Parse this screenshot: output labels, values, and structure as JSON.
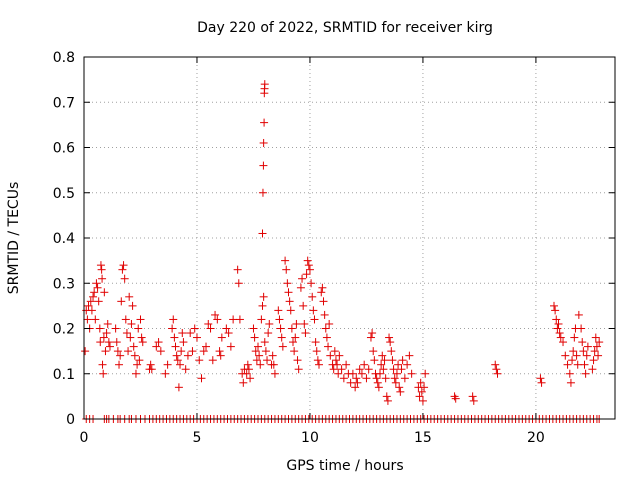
{
  "chart_data": {
    "type": "scatter",
    "title": "Day 220 of 2022, SRMTID for receiver kirg",
    "xlabel": "GPS time / hours",
    "ylabel": "SRMTID / TECUs",
    "xlim": [
      0,
      23.5
    ],
    "ylim": [
      0,
      0.8
    ],
    "xticks": [
      0,
      5,
      10,
      15,
      20
    ],
    "yticks": [
      0,
      0.1,
      0.2,
      0.3,
      0.4,
      0.5,
      0.6,
      0.7,
      0.8
    ],
    "xtick_labels": [
      "0",
      "5",
      "10",
      "15",
      "20"
    ],
    "ytick_labels": [
      "0",
      "0.1",
      "0.2",
      "0.3",
      "0.4",
      "0.5",
      "0.6",
      "0.7",
      "0.8"
    ],
    "marker": "+",
    "color": "#e00000",
    "grid": true,
    "series": [
      {
        "name": "SRMTID",
        "points": [
          [
            0.05,
            0.15
          ],
          [
            0.1,
            0.24
          ],
          [
            0.15,
            0.22
          ],
          [
            0.2,
            0.25
          ],
          [
            0.25,
            0.2
          ],
          [
            0.3,
            0.26
          ],
          [
            0.35,
            0.24
          ],
          [
            0.4,
            0.27
          ],
          [
            0.45,
            0.28
          ],
          [
            0.5,
            0.22
          ],
          [
            0.55,
            0.3
          ],
          [
            0.6,
            0.29
          ],
          [
            0.65,
            0.26
          ],
          [
            0.7,
            0.2
          ],
          [
            0.72,
            0.17
          ],
          [
            0.75,
            0.34
          ],
          [
            0.78,
            0.33
          ],
          [
            0.8,
            0.31
          ],
          [
            0.82,
            0.12
          ],
          [
            0.85,
            0.1
          ],
          [
            0.88,
            0.18
          ],
          [
            0.9,
            0.28
          ],
          [
            0.95,
            0.15
          ],
          [
            1.0,
            0.19
          ],
          [
            1.05,
            0.21
          ],
          [
            1.1,
            0.17
          ],
          [
            1.15,
            0.16
          ],
          [
            1.4,
            0.2
          ],
          [
            1.45,
            0.17
          ],
          [
            1.5,
            0.15
          ],
          [
            1.55,
            0.12
          ],
          [
            1.6,
            0.14
          ],
          [
            1.65,
            0.26
          ],
          [
            1.7,
            0.33
          ],
          [
            1.75,
            0.34
          ],
          [
            1.8,
            0.31
          ],
          [
            1.85,
            0.22
          ],
          [
            1.9,
            0.19
          ],
          [
            1.95,
            0.15
          ],
          [
            2.0,
            0.27
          ],
          [
            2.05,
            0.18
          ],
          [
            2.1,
            0.21
          ],
          [
            2.15,
            0.25
          ],
          [
            2.2,
            0.16
          ],
          [
            2.25,
            0.14
          ],
          [
            2.3,
            0.1
          ],
          [
            2.35,
            0.12
          ],
          [
            2.4,
            0.2
          ],
          [
            2.45,
            0.13
          ],
          [
            2.5,
            0.22
          ],
          [
            2.55,
            0.18
          ],
          [
            2.6,
            0.17
          ],
          [
            2.9,
            0.11
          ],
          [
            2.95,
            0.12
          ],
          [
            3.0,
            0.11
          ],
          [
            3.2,
            0.16
          ],
          [
            3.3,
            0.17
          ],
          [
            3.4,
            0.15
          ],
          [
            3.6,
            0.1
          ],
          [
            3.7,
            0.12
          ],
          [
            3.9,
            0.2
          ],
          [
            3.95,
            0.22
          ],
          [
            4.0,
            0.18
          ],
          [
            4.05,
            0.16
          ],
          [
            4.1,
            0.14
          ],
          [
            4.15,
            0.13
          ],
          [
            4.2,
            0.07
          ],
          [
            4.25,
            0.12
          ],
          [
            4.3,
            0.15
          ],
          [
            4.35,
            0.19
          ],
          [
            4.4,
            0.17
          ],
          [
            4.5,
            0.11
          ],
          [
            4.6,
            0.14
          ],
          [
            4.7,
            0.19
          ],
          [
            4.8,
            0.15
          ],
          [
            4.9,
            0.2
          ],
          [
            5.0,
            0.18
          ],
          [
            5.1,
            0.13
          ],
          [
            5.2,
            0.09
          ],
          [
            5.3,
            0.15
          ],
          [
            5.4,
            0.16
          ],
          [
            5.5,
            0.21
          ],
          [
            5.6,
            0.2
          ],
          [
            5.7,
            0.13
          ],
          [
            5.8,
            0.23
          ],
          [
            5.9,
            0.22
          ],
          [
            6.0,
            0.15
          ],
          [
            6.05,
            0.14
          ],
          [
            6.1,
            0.18
          ],
          [
            6.3,
            0.2
          ],
          [
            6.4,
            0.19
          ],
          [
            6.5,
            0.16
          ],
          [
            6.6,
            0.22
          ],
          [
            6.8,
            0.33
          ],
          [
            6.85,
            0.3
          ],
          [
            6.9,
            0.22
          ],
          [
            7.0,
            0.1
          ],
          [
            7.05,
            0.08
          ],
          [
            7.1,
            0.11
          ],
          [
            7.2,
            0.1
          ],
          [
            7.25,
            0.12
          ],
          [
            7.3,
            0.11
          ],
          [
            7.35,
            0.09
          ],
          [
            7.5,
            0.2
          ],
          [
            7.55,
            0.18
          ],
          [
            7.6,
            0.15
          ],
          [
            7.65,
            0.13
          ],
          [
            7.7,
            0.16
          ],
          [
            7.75,
            0.14
          ],
          [
            7.8,
            0.12
          ],
          [
            7.85,
            0.22
          ],
          [
            7.9,
            0.25
          ],
          [
            7.95,
            0.27
          ],
          [
            8.0,
            0.17
          ],
          [
            8.05,
            0.15
          ],
          [
            8.1,
            0.13
          ],
          [
            8.15,
            0.19
          ],
          [
            8.2,
            0.21
          ],
          [
            8.3,
            0.12
          ],
          [
            8.35,
            0.14
          ],
          [
            7.9,
            0.41
          ],
          [
            7.92,
            0.5
          ],
          [
            7.94,
            0.56
          ],
          [
            7.95,
            0.61
          ],
          [
            7.97,
            0.655
          ],
          [
            7.98,
            0.72
          ],
          [
            7.99,
            0.73
          ],
          [
            8.0,
            0.74
          ],
          [
            8.4,
            0.12
          ],
          [
            8.45,
            0.1
          ],
          [
            8.6,
            0.24
          ],
          [
            8.65,
            0.22
          ],
          [
            8.7,
            0.2
          ],
          [
            8.75,
            0.18
          ],
          [
            8.8,
            0.16
          ],
          [
            8.9,
            0.35
          ],
          [
            8.95,
            0.33
          ],
          [
            9.0,
            0.3
          ],
          [
            9.05,
            0.28
          ],
          [
            9.1,
            0.26
          ],
          [
            9.15,
            0.24
          ],
          [
            9.2,
            0.2
          ],
          [
            9.25,
            0.17
          ],
          [
            9.3,
            0.15
          ],
          [
            9.35,
            0.18
          ],
          [
            9.4,
            0.21
          ],
          [
            9.45,
            0.13
          ],
          [
            9.5,
            0.11
          ],
          [
            9.6,
            0.29
          ],
          [
            9.65,
            0.31
          ],
          [
            9.7,
            0.25
          ],
          [
            9.75,
            0.21
          ],
          [
            9.8,
            0.19
          ],
          [
            9.85,
            0.32
          ],
          [
            9.9,
            0.35
          ],
          [
            9.95,
            0.34
          ],
          [
            10.0,
            0.33
          ],
          [
            10.05,
            0.3
          ],
          [
            10.1,
            0.27
          ],
          [
            10.15,
            0.24
          ],
          [
            10.2,
            0.22
          ],
          [
            10.25,
            0.17
          ],
          [
            10.3,
            0.15
          ],
          [
            10.35,
            0.13
          ],
          [
            10.4,
            0.12
          ],
          [
            10.5,
            0.28
          ],
          [
            10.55,
            0.29
          ],
          [
            10.6,
            0.26
          ],
          [
            10.65,
            0.23
          ],
          [
            10.7,
            0.2
          ],
          [
            10.75,
            0.18
          ],
          [
            10.8,
            0.16
          ],
          [
            10.85,
            0.21
          ],
          [
            10.9,
            0.14
          ],
          [
            11.0,
            0.12
          ],
          [
            11.05,
            0.11
          ],
          [
            11.1,
            0.15
          ],
          [
            11.15,
            0.13
          ],
          [
            11.2,
            0.12
          ],
          [
            11.25,
            0.1
          ],
          [
            11.3,
            0.14
          ],
          [
            11.4,
            0.11
          ],
          [
            11.5,
            0.09
          ],
          [
            11.6,
            0.12
          ],
          [
            11.7,
            0.1
          ],
          [
            11.8,
            0.08
          ],
          [
            11.9,
            0.1
          ],
          [
            12.0,
            0.07
          ],
          [
            12.05,
            0.09
          ],
          [
            12.1,
            0.08
          ],
          [
            12.2,
            0.11
          ],
          [
            12.3,
            0.1
          ],
          [
            12.4,
            0.12
          ],
          [
            12.5,
            0.09
          ],
          [
            12.6,
            0.11
          ],
          [
            12.7,
            0.18
          ],
          [
            12.75,
            0.19
          ],
          [
            12.8,
            0.15
          ],
          [
            12.85,
            0.13
          ],
          [
            12.9,
            0.1
          ],
          [
            12.95,
            0.09
          ],
          [
            13.0,
            0.08
          ],
          [
            13.05,
            0.07
          ],
          [
            13.1,
            0.1
          ],
          [
            13.15,
            0.12
          ],
          [
            13.2,
            0.14
          ],
          [
            13.25,
            0.11
          ],
          [
            13.3,
            0.13
          ],
          [
            13.35,
            0.09
          ],
          [
            13.4,
            0.05
          ],
          [
            13.45,
            0.04
          ],
          [
            13.5,
            0.18
          ],
          [
            13.55,
            0.17
          ],
          [
            13.6,
            0.15
          ],
          [
            13.65,
            0.13
          ],
          [
            13.7,
            0.11
          ],
          [
            13.75,
            0.09
          ],
          [
            13.8,
            0.08
          ],
          [
            13.85,
            0.1
          ],
          [
            13.9,
            0.12
          ],
          [
            13.95,
            0.07
          ],
          [
            14.0,
            0.06
          ],
          [
            14.05,
            0.11
          ],
          [
            14.1,
            0.13
          ],
          [
            14.2,
            0.09
          ],
          [
            14.3,
            0.12
          ],
          [
            14.4,
            0.14
          ],
          [
            14.5,
            0.1
          ],
          [
            14.8,
            0.07
          ],
          [
            14.85,
            0.05
          ],
          [
            14.9,
            0.08
          ],
          [
            14.95,
            0.06
          ],
          [
            15.0,
            0.04
          ],
          [
            15.05,
            0.07
          ],
          [
            15.1,
            0.1
          ],
          [
            16.4,
            0.05
          ],
          [
            16.45,
            0.045
          ],
          [
            17.2,
            0.05
          ],
          [
            17.25,
            0.04
          ],
          [
            18.2,
            0.12
          ],
          [
            18.25,
            0.11
          ],
          [
            18.3,
            0.1
          ],
          [
            20.2,
            0.09
          ],
          [
            20.25,
            0.08
          ],
          [
            20.8,
            0.25
          ],
          [
            20.85,
            0.24
          ],
          [
            20.9,
            0.22
          ],
          [
            20.95,
            0.2
          ],
          [
            21.0,
            0.21
          ],
          [
            21.05,
            0.19
          ],
          [
            21.1,
            0.18
          ],
          [
            21.2,
            0.17
          ],
          [
            21.3,
            0.14
          ],
          [
            21.4,
            0.12
          ],
          [
            21.5,
            0.1
          ],
          [
            21.55,
            0.08
          ],
          [
            21.6,
            0.13
          ],
          [
            21.65,
            0.15
          ],
          [
            21.7,
            0.18
          ],
          [
            21.75,
            0.2
          ],
          [
            21.8,
            0.14
          ],
          [
            21.85,
            0.12
          ],
          [
            21.9,
            0.23
          ],
          [
            22.0,
            0.2
          ],
          [
            22.05,
            0.17
          ],
          [
            22.1,
            0.15
          ],
          [
            22.15,
            0.12
          ],
          [
            22.2,
            0.1
          ],
          [
            22.25,
            0.14
          ],
          [
            22.3,
            0.16
          ],
          [
            22.5,
            0.11
          ],
          [
            22.55,
            0.13
          ],
          [
            22.6,
            0.15
          ],
          [
            22.65,
            0.18
          ],
          [
            22.7,
            0.16
          ],
          [
            22.75,
            0.14
          ],
          [
            22.8,
            0.17
          ]
        ]
      }
    ],
    "zero_points_x": [
      0.1,
      0.25,
      0.4,
      0.9,
      1.0,
      1.1,
      1.3,
      1.5,
      1.6,
      1.8,
      2.0,
      2.1,
      2.3,
      2.5,
      2.7,
      2.9,
      3.05,
      3.2,
      3.35,
      3.5,
      3.65,
      3.8,
      3.95,
      4.1,
      4.25,
      4.4,
      4.55,
      4.7,
      4.85,
      5.0,
      5.15,
      5.3,
      5.45,
      5.6,
      5.75,
      5.9,
      6.05,
      6.2,
      6.35,
      6.5,
      6.65,
      6.8,
      6.95,
      7.1,
      7.25,
      7.4,
      7.55,
      7.7,
      7.85,
      8.0,
      8.15,
      8.3,
      8.45,
      8.6,
      8.75,
      8.9,
      9.05,
      9.2,
      9.35,
      9.5,
      9.65,
      9.8,
      9.95,
      10.1,
      10.25,
      10.4,
      10.55,
      10.7,
      10.85,
      11.0,
      11.15,
      11.3,
      11.45,
      11.6,
      11.75,
      11.9,
      12.05,
      12.2,
      12.35,
      12.5,
      12.65,
      12.8,
      12.95,
      13.1,
      13.25,
      13.4,
      13.55,
      13.7,
      13.85,
      14.0,
      14.15,
      14.3,
      14.45,
      14.6,
      14.75,
      14.9,
      15.05,
      15.2,
      15.35,
      15.5,
      15.65,
      15.8,
      15.95,
      16.1,
      16.25,
      16.4,
      16.55,
      16.7,
      16.85,
      17.0,
      17.15,
      17.3,
      17.45,
      17.6,
      17.75,
      17.9,
      18.05,
      18.2,
      18.35,
      18.5,
      18.65,
      18.8,
      18.95,
      19.1,
      19.25,
      19.4,
      19.55,
      19.7,
      19.85,
      20.0,
      20.15,
      20.3,
      20.45,
      20.6,
      20.75,
      20.9,
      21.05,
      21.2,
      21.35,
      21.5,
      21.65,
      21.8,
      21.95,
      22.1,
      22.25,
      22.4,
      22.55,
      22.7,
      22.8
    ]
  }
}
